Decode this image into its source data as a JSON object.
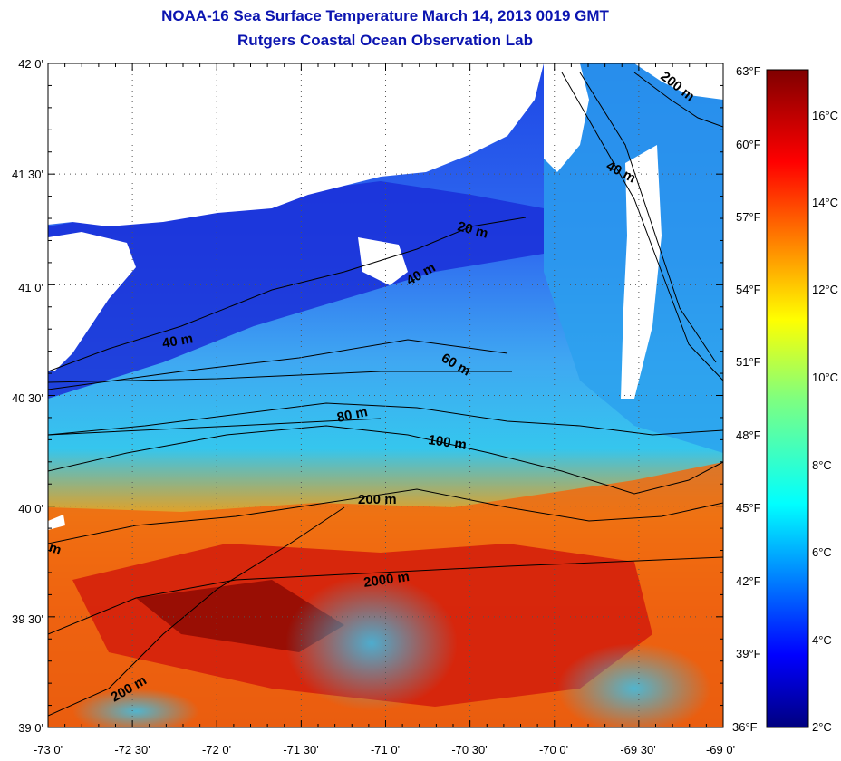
{
  "title": "NOAA-16 Sea Surface Temperature March 14, 2013 0019 GMT",
  "subtitle": "Rutgers Coastal Ocean Observation Lab",
  "chart_data": {
    "type": "heatmap",
    "title": "NOAA-16 Sea Surface Temperature March 14, 2013 0019 GMT",
    "subtitle": "Rutgers Coastal Ocean Observation Lab",
    "x_ticks": [
      "-73 0'",
      "-72 30'",
      "-72 0'",
      "-71 30'",
      "-71 0'",
      "-70 30'",
      "-70 0'",
      "-69 30'",
      "-69 0'"
    ],
    "y_ticks": [
      "42 0'",
      "41 30'",
      "41 0'",
      "40 30'",
      "40 0'",
      "39 30'",
      "39 0'"
    ],
    "xlim": [
      -73,
      -69
    ],
    "ylim": [
      39,
      42
    ],
    "colorbar": {
      "fahrenheit_ticks": [
        "63°F",
        "60°F",
        "57°F",
        "54°F",
        "51°F",
        "48°F",
        "45°F",
        "42°F",
        "39°F",
        "36°F"
      ],
      "celsius_ticks": [
        "16°C",
        "14°C",
        "12°C",
        "10°C",
        "8°C",
        "6°C",
        "4°C",
        "2°C"
      ],
      "range_c": [
        2,
        17.2
      ]
    },
    "contour_labels": [
      "200 m",
      "40 m",
      "20 m",
      "40 m",
      "40 m",
      "60 m",
      "80 m",
      "100 m",
      "200 m",
      "2000 m",
      "200 m",
      "m"
    ],
    "colors": {
      "cold": "#00007f",
      "cool": "#2a55e8",
      "mid": "#30c8f0",
      "warm": "#f06a10",
      "hot": "#7f0000",
      "land": "#ffffff",
      "title": "#0b14b0"
    }
  }
}
